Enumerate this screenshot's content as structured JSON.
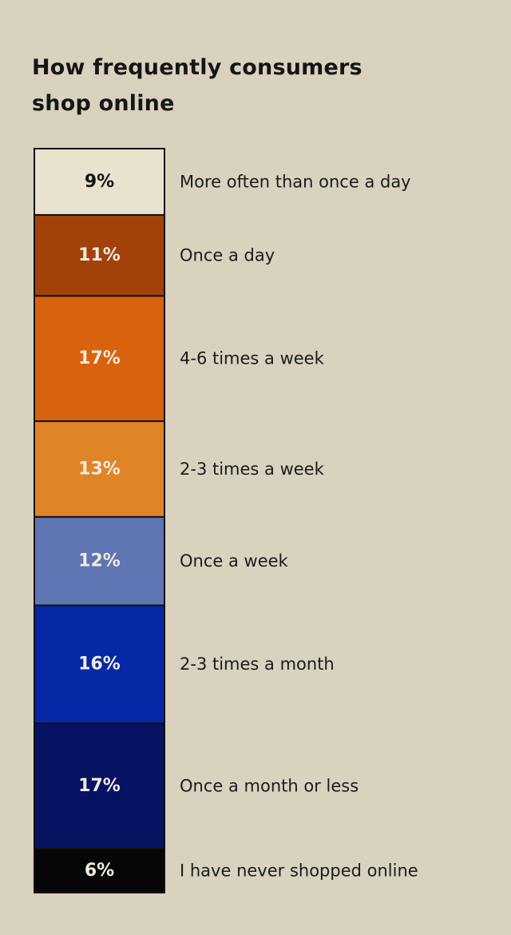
{
  "chart_data": {
    "type": "bar",
    "orientation": "stacked-vertical",
    "title": "How frequently consumers shop online",
    "unit": "%",
    "categories": [
      "More often than once a day",
      "Once a day",
      "4-6 times a week",
      "2-3 times a week",
      "Once a week",
      "2-3 times a month",
      "Once a month or less",
      "I have never shopped online"
    ],
    "values": [
      9,
      11,
      17,
      13,
      12,
      16,
      17,
      6
    ],
    "value_labels": [
      "9%",
      "11%",
      "17%",
      "13%",
      "12%",
      "16%",
      "17%",
      "6%"
    ],
    "colors": [
      "#e8e2cf",
      "#a3410a",
      "#d8620d",
      "#e08428",
      "#5f75b4",
      "#0628a6",
      "#071362",
      "#060606"
    ],
    "label_colors": [
      "#141414",
      "#f1ece0",
      "#f1ece0",
      "#f1ece0",
      "#f1ece0",
      "#f1ece0",
      "#f1ece0",
      "#f1ece0"
    ],
    "legend": "right"
  }
}
